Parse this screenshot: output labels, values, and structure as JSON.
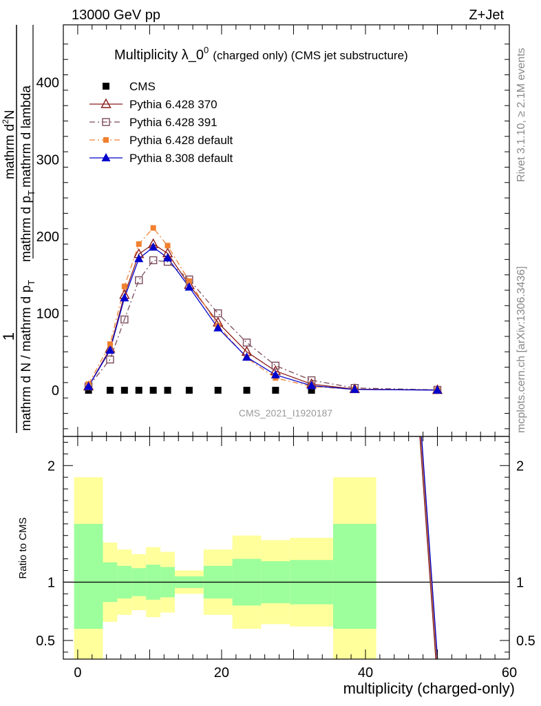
{
  "header": {
    "left": "13000 GeV pp",
    "right": "Z+Jet"
  },
  "side_labels": {
    "rivet": "Rivet 3.1.10, ≥ 2.1M events",
    "mcplots": "mcplots.cern.ch [arXiv:1306.3436]"
  },
  "watermark": "CMS_2021_I1920187",
  "chart_data": [
    {
      "type": "line",
      "title_main": "Multiplicity λ_0",
      "title_sup": "0",
      "title_rest": "(charged only) (CMS jet substructure)",
      "ylabel_parts": {
        "numerator_one": "1",
        "denominator_left": "mathrm d N / mathrm d p",
        "denominator_sub": "T",
        "numerator_right": "mathrm d",
        "numerator_right_sup": "2",
        "numerator_right_rest": "N",
        "denominator_right_left": "mathrm d p",
        "denominator_right_sub": "T",
        "denominator_right_rest": "mathrm d lambda"
      },
      "xlim": [
        -2,
        60
      ],
      "ylim": [
        -60,
        475
      ],
      "yticks": [
        0,
        100,
        200,
        300,
        400
      ],
      "legend_position": "top-left",
      "series": [
        {
          "name": "CMS",
          "color": "#000000",
          "marker": "square-filled",
          "points": [
            [
              1.5,
              0
            ],
            [
              4.5,
              0
            ],
            [
              6.5,
              0
            ],
            [
              8.5,
              0
            ],
            [
              10.5,
              0
            ],
            [
              12.5,
              0
            ],
            [
              15.5,
              0
            ],
            [
              19.5,
              0
            ],
            [
              23.5,
              0
            ],
            [
              27.5,
              0
            ],
            [
              32.5,
              0
            ]
          ]
        },
        {
          "name": "Pythia 6.428 370",
          "color": "#8b1a1a",
          "marker": "triangle-open",
          "dash": "solid",
          "points": [
            [
              1.5,
              5
            ],
            [
              4.5,
              54
            ],
            [
              6.5,
              124
            ],
            [
              8.5,
              177
            ],
            [
              10.5,
              190
            ],
            [
              12.5,
              178
            ],
            [
              15.5,
              137
            ],
            [
              19.5,
              88
            ],
            [
              23.5,
              50
            ],
            [
              27.5,
              25
            ],
            [
              32.5,
              8
            ],
            [
              38.5,
              1.5
            ],
            [
              50,
              0.3
            ]
          ]
        },
        {
          "name": "Pythia 6.428 391",
          "color": "#7a4a5a",
          "marker": "square-open",
          "dash": "dashdot",
          "points": [
            [
              1.5,
              5
            ],
            [
              4.5,
              40
            ],
            [
              6.5,
              92
            ],
            [
              8.5,
              143
            ],
            [
              10.5,
              169
            ],
            [
              12.5,
              167
            ],
            [
              15.5,
              144
            ],
            [
              19.5,
              100
            ],
            [
              23.5,
              62
            ],
            [
              27.5,
              32
            ],
            [
              32.5,
              13
            ],
            [
              38.5,
              3
            ],
            [
              50,
              0.5
            ]
          ]
        },
        {
          "name": "Pythia 6.428 default",
          "color": "#f08030",
          "marker": "square-filled-small",
          "dash": "dashdot",
          "points": [
            [
              1.5,
              8
            ],
            [
              4.5,
              60
            ],
            [
              6.5,
              135
            ],
            [
              8.5,
              190
            ],
            [
              10.5,
              211
            ],
            [
              12.5,
              188
            ],
            [
              15.5,
              142
            ],
            [
              19.5,
              84
            ],
            [
              23.5,
              42
            ],
            [
              27.5,
              16
            ],
            [
              32.5,
              5
            ],
            [
              38.5,
              1
            ],
            [
              50,
              0.2
            ]
          ]
        },
        {
          "name": "Pythia 8.308 default",
          "color": "#0000cc",
          "marker": "triangle-filled",
          "dash": "solid",
          "points": [
            [
              1.5,
              5
            ],
            [
              4.5,
              52
            ],
            [
              6.5,
              120
            ],
            [
              8.5,
              171
            ],
            [
              10.5,
              186
            ],
            [
              12.5,
              172
            ],
            [
              15.5,
              134
            ],
            [
              19.5,
              81
            ],
            [
              23.5,
              43
            ],
            [
              27.5,
              20
            ],
            [
              32.5,
              6
            ],
            [
              38.5,
              1
            ],
            [
              50,
              0.2
            ]
          ]
        }
      ]
    },
    {
      "type": "area",
      "ylabel": "Ratio to CMS",
      "xlabel": "multiplicity (charged-only)",
      "xlim": [
        -2,
        60
      ],
      "ylim": [
        0.34,
        2.25
      ],
      "yticks": [
        0.5,
        1,
        2
      ],
      "ytick_labels": [
        "0.5",
        "1",
        "2"
      ],
      "xticks": [
        0,
        20,
        40,
        60
      ],
      "xtick_labels": [
        "0",
        "20",
        "40",
        "60"
      ],
      "bins": [
        {
          "x0": -0.5,
          "x1": 3.5,
          "inner": [
            0.6,
            1.5
          ],
          "outer": [
            0.3,
            1.9
          ]
        },
        {
          "x0": 3.5,
          "x1": 5.5,
          "inner": [
            0.83,
            1.17
          ],
          "outer": [
            0.66,
            1.34
          ]
        },
        {
          "x0": 5.5,
          "x1": 7.5,
          "inner": [
            0.86,
            1.14
          ],
          "outer": [
            0.72,
            1.28
          ]
        },
        {
          "x0": 7.5,
          "x1": 9.5,
          "inner": [
            0.88,
            1.12
          ],
          "outer": [
            0.76,
            1.24
          ]
        },
        {
          "x0": 9.5,
          "x1": 11.5,
          "inner": [
            0.85,
            1.15
          ],
          "outer": [
            0.7,
            1.3
          ]
        },
        {
          "x0": 11.5,
          "x1": 13.5,
          "inner": [
            0.87,
            1.13
          ],
          "outer": [
            0.74,
            1.26
          ]
        },
        {
          "x0": 13.5,
          "x1": 17.5,
          "inner": [
            0.95,
            1.05
          ],
          "outer": [
            0.9,
            1.1
          ]
        },
        {
          "x0": 17.5,
          "x1": 21.5,
          "inner": [
            0.86,
            1.14
          ],
          "outer": [
            0.72,
            1.28
          ]
        },
        {
          "x0": 21.5,
          "x1": 25.5,
          "inner": [
            0.8,
            1.2
          ],
          "outer": [
            0.6,
            1.4
          ]
        },
        {
          "x0": 25.5,
          "x1": 29.5,
          "inner": [
            0.82,
            1.18
          ],
          "outer": [
            0.64,
            1.36
          ]
        },
        {
          "x0": 29.5,
          "x1": 35.5,
          "inner": [
            0.81,
            1.19
          ],
          "outer": [
            0.62,
            1.38
          ]
        },
        {
          "x0": 35.5,
          "x1": 41.5,
          "inner": [
            0.6,
            1.5
          ],
          "outer": [
            0.3,
            1.9
          ]
        }
      ],
      "band_colors": {
        "inner": "#9cff9c",
        "outer": "#ffff9c"
      },
      "ratio_lines": [
        {
          "series": "Pythia 6.428 370",
          "color": "#8b1a1a",
          "points": [
            [
              47.5,
              2.4
            ],
            [
              50,
              0.25
            ]
          ]
        },
        {
          "series": "Pythia 6.428 391",
          "color": "#7a4a5a",
          "points": [
            [
              47.5,
              2.4
            ],
            [
              50,
              0.25
            ]
          ]
        },
        {
          "series": "Pythia 6.428 default",
          "color": "#f08030",
          "points": [
            [
              47.5,
              2.4
            ],
            [
              50,
              0.25
            ]
          ]
        },
        {
          "series": "Pythia 8.308 default",
          "color": "#0000cc",
          "points": [
            [
              47.5,
              2.4
            ],
            [
              50,
              0.25
            ]
          ]
        }
      ]
    }
  ]
}
